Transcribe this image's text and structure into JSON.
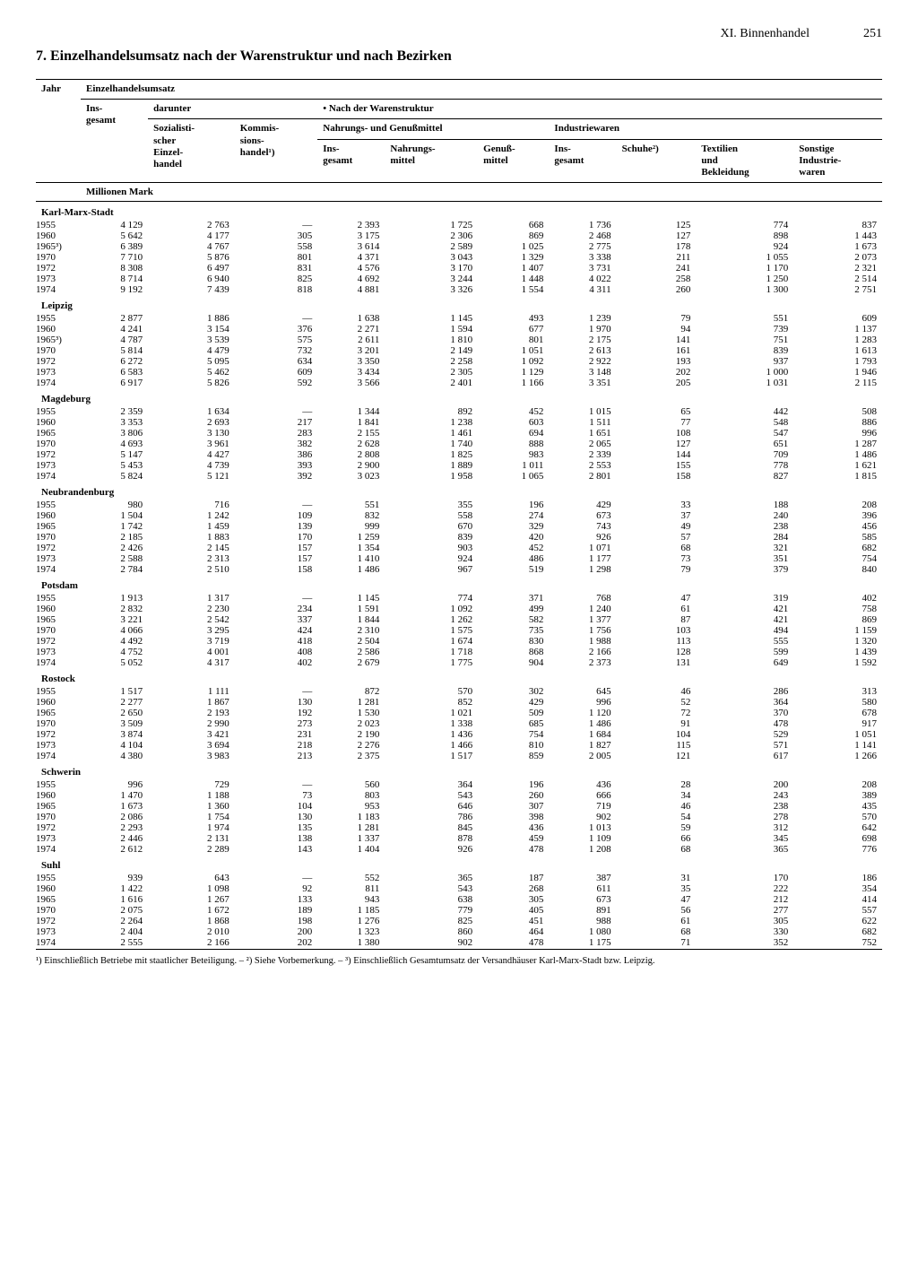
{
  "header": {
    "chapter": "XI. Binnenhandel",
    "page": "251"
  },
  "title": "7. Einzelhandelsumsatz nach der Warenstruktur und nach Bezirken",
  "columns": {
    "jahr": "Jahr",
    "einzelhandelsumsatz": "Einzelhandelsumsatz",
    "insgesamt": "Ins-\ngesamt",
    "darunter": "darunter",
    "sozEinzel": "Sozialisti-\nscher\nEinzel-\nhandel",
    "kommis": "Kommis-\nsions-\nhandel¹)",
    "nachWaren": "Nach der Warenstruktur",
    "nahrGenuss": "Nahrungs- und Genußmittel",
    "nahrIns": "Ins-\ngesamt",
    "nahrMittel": "Nahrungs-\nmittel",
    "genussMittel": "Genuß-\nmittel",
    "industriewaren": "Industriewaren",
    "indIns": "Ins-\ngesamt",
    "schuhe": "Schuhe²)",
    "textilien": "Textilien\nund\nBekleidung",
    "sonstige": "Sonstige\nIndustrie-\nwaren"
  },
  "unit": "Millionen Mark",
  "districts": [
    {
      "name": "Karl-Marx-Stadt",
      "rows": [
        [
          "1955",
          "4 129",
          "2 763",
          "—",
          "2 393",
          "1 725",
          "668",
          "1 736",
          "125",
          "774",
          "837"
        ],
        [
          "1960",
          "5 642",
          "4 177",
          "305",
          "3 175",
          "2 306",
          "869",
          "2 468",
          "127",
          "898",
          "1 443"
        ],
        [
          "1965³)",
          "6 389",
          "4 767",
          "558",
          "3 614",
          "2 589",
          "1 025",
          "2 775",
          "178",
          "924",
          "1 673"
        ],
        [
          "1970",
          "7 710",
          "5 876",
          "801",
          "4 371",
          "3 043",
          "1 329",
          "3 338",
          "211",
          "1 055",
          "2 073"
        ],
        [
          "1972",
          "8 308",
          "6 497",
          "831",
          "4 576",
          "3 170",
          "1 407",
          "3 731",
          "241",
          "1 170",
          "2 321"
        ],
        [
          "1973",
          "8 714",
          "6 940",
          "825",
          "4 692",
          "3 244",
          "1 448",
          "4 022",
          "258",
          "1 250",
          "2 514"
        ],
        [
          "1974",
          "9 192",
          "7 439",
          "818",
          "4 881",
          "3 326",
          "1 554",
          "4 311",
          "260",
          "1 300",
          "2 751"
        ]
      ]
    },
    {
      "name": "Leipzig",
      "rows": [
        [
          "1955",
          "2 877",
          "1 886",
          "—",
          "1 638",
          "1 145",
          "493",
          "1 239",
          "79",
          "551",
          "609"
        ],
        [
          "1960",
          "4 241",
          "3 154",
          "376",
          "2 271",
          "1 594",
          "677",
          "1 970",
          "94",
          "739",
          "1 137"
        ],
        [
          "1965³)",
          "4 787",
          "3 539",
          "575",
          "2 611",
          "1 810",
          "801",
          "2 175",
          "141",
          "751",
          "1 283"
        ],
        [
          "1970",
          "5 814",
          "4 479",
          "732",
          "3 201",
          "2 149",
          "1 051",
          "2 613",
          "161",
          "839",
          "1 613"
        ],
        [
          "1972",
          "6 272",
          "5 095",
          "634",
          "3 350",
          "2 258",
          "1 092",
          "2 922",
          "193",
          "937",
          "1 793"
        ],
        [
          "1973",
          "6 583",
          "5 462",
          "609",
          "3 434",
          "2 305",
          "1 129",
          "3 148",
          "202",
          "1 000",
          "1 946"
        ],
        [
          "1974",
          "6 917",
          "5 826",
          "592",
          "3 566",
          "2 401",
          "1 166",
          "3 351",
          "205",
          "1 031",
          "2 115"
        ]
      ]
    },
    {
      "name": "Magdeburg",
      "rows": [
        [
          "1955",
          "2 359",
          "1 634",
          "—",
          "1 344",
          "892",
          "452",
          "1 015",
          "65",
          "442",
          "508"
        ],
        [
          "1960",
          "3 353",
          "2 693",
          "217",
          "1 841",
          "1 238",
          "603",
          "1 511",
          "77",
          "548",
          "886"
        ],
        [
          "1965",
          "3 806",
          "3 130",
          "283",
          "2 155",
          "1 461",
          "694",
          "1 651",
          "108",
          "547",
          "996"
        ],
        [
          "1970",
          "4 693",
          "3 961",
          "382",
          "2 628",
          "1 740",
          "888",
          "2 065",
          "127",
          "651",
          "1 287"
        ],
        [
          "1972",
          "5 147",
          "4 427",
          "386",
          "2 808",
          "1 825",
          "983",
          "2 339",
          "144",
          "709",
          "1 486"
        ],
        [
          "1973",
          "5 453",
          "4 739",
          "393",
          "2 900",
          "1 889",
          "1 011",
          "2 553",
          "155",
          "778",
          "1 621"
        ],
        [
          "1974",
          "5 824",
          "5 121",
          "392",
          "3 023",
          "1 958",
          "1 065",
          "2 801",
          "158",
          "827",
          "1 815"
        ]
      ]
    },
    {
      "name": "Neubrandenburg",
      "rows": [
        [
          "1955",
          "980",
          "716",
          "—",
          "551",
          "355",
          "196",
          "429",
          "33",
          "188",
          "208"
        ],
        [
          "1960",
          "1 504",
          "1 242",
          "109",
          "832",
          "558",
          "274",
          "673",
          "37",
          "240",
          "396"
        ],
        [
          "1965",
          "1 742",
          "1 459",
          "139",
          "999",
          "670",
          "329",
          "743",
          "49",
          "238",
          "456"
        ],
        [
          "1970",
          "2 185",
          "1 883",
          "170",
          "1 259",
          "839",
          "420",
          "926",
          "57",
          "284",
          "585"
        ],
        [
          "1972",
          "2 426",
          "2 145",
          "157",
          "1 354",
          "903",
          "452",
          "1 071",
          "68",
          "321",
          "682"
        ],
        [
          "1973",
          "2 588",
          "2 313",
          "157",
          "1 410",
          "924",
          "486",
          "1 177",
          "73",
          "351",
          "754"
        ],
        [
          "1974",
          "2 784",
          "2 510",
          "158",
          "1 486",
          "967",
          "519",
          "1 298",
          "79",
          "379",
          "840"
        ]
      ]
    },
    {
      "name": "Potsdam",
      "rows": [
        [
          "1955",
          "1 913",
          "1 317",
          "—",
          "1 145",
          "774",
          "371",
          "768",
          "47",
          "319",
          "402"
        ],
        [
          "1960",
          "2 832",
          "2 230",
          "234",
          "1 591",
          "1 092",
          "499",
          "1 240",
          "61",
          "421",
          "758"
        ],
        [
          "1965",
          "3 221",
          "2 542",
          "337",
          "1 844",
          "1 262",
          "582",
          "1 377",
          "87",
          "421",
          "869"
        ],
        [
          "1970",
          "4 066",
          "3 295",
          "424",
          "2 310",
          "1 575",
          "735",
          "1 756",
          "103",
          "494",
          "1 159"
        ],
        [
          "1972",
          "4 492",
          "3 719",
          "418",
          "2 504",
          "1 674",
          "830",
          "1 988",
          "113",
          "555",
          "1 320"
        ],
        [
          "1973",
          "4 752",
          "4 001",
          "408",
          "2 586",
          "1 718",
          "868",
          "2 166",
          "128",
          "599",
          "1 439"
        ],
        [
          "1974",
          "5 052",
          "4 317",
          "402",
          "2 679",
          "1 775",
          "904",
          "2 373",
          "131",
          "649",
          "1 592"
        ]
      ]
    },
    {
      "name": "Rostock",
      "rows": [
        [
          "1955",
          "1 517",
          "1 111",
          "—",
          "872",
          "570",
          "302",
          "645",
          "46",
          "286",
          "313"
        ],
        [
          "1960",
          "2 277",
          "1 867",
          "130",
          "1 281",
          "852",
          "429",
          "996",
          "52",
          "364",
          "580"
        ],
        [
          "1965",
          "2 650",
          "2 193",
          "192",
          "1 530",
          "1 021",
          "509",
          "1 120",
          "72",
          "370",
          "678"
        ],
        [
          "1970",
          "3 509",
          "2 990",
          "273",
          "2 023",
          "1 338",
          "685",
          "1 486",
          "91",
          "478",
          "917"
        ],
        [
          "1972",
          "3 874",
          "3 421",
          "231",
          "2 190",
          "1 436",
          "754",
          "1 684",
          "104",
          "529",
          "1 051"
        ],
        [
          "1973",
          "4 104",
          "3 694",
          "218",
          "2 276",
          "1 466",
          "810",
          "1 827",
          "115",
          "571",
          "1 141"
        ],
        [
          "1974",
          "4 380",
          "3 983",
          "213",
          "2 375",
          "1 517",
          "859",
          "2 005",
          "121",
          "617",
          "1 266"
        ]
      ]
    },
    {
      "name": "Schwerin",
      "rows": [
        [
          "1955",
          "996",
          "729",
          "—",
          "560",
          "364",
          "196",
          "436",
          "28",
          "200",
          "208"
        ],
        [
          "1960",
          "1 470",
          "1 188",
          "73",
          "803",
          "543",
          "260",
          "666",
          "34",
          "243",
          "389"
        ],
        [
          "1965",
          "1 673",
          "1 360",
          "104",
          "953",
          "646",
          "307",
          "719",
          "46",
          "238",
          "435"
        ],
        [
          "1970",
          "2 086",
          "1 754",
          "130",
          "1 183",
          "786",
          "398",
          "902",
          "54",
          "278",
          "570"
        ],
        [
          "1972",
          "2 293",
          "1 974",
          "135",
          "1 281",
          "845",
          "436",
          "1 013",
          "59",
          "312",
          "642"
        ],
        [
          "1973",
          "2 446",
          "2 131",
          "138",
          "1 337",
          "878",
          "459",
          "1 109",
          "66",
          "345",
          "698"
        ],
        [
          "1974",
          "2 612",
          "2 289",
          "143",
          "1 404",
          "926",
          "478",
          "1 208",
          "68",
          "365",
          "776"
        ]
      ]
    },
    {
      "name": "Suhl",
      "rows": [
        [
          "1955",
          "939",
          "643",
          "—",
          "552",
          "365",
          "187",
          "387",
          "31",
          "170",
          "186"
        ],
        [
          "1960",
          "1 422",
          "1 098",
          "92",
          "811",
          "543",
          "268",
          "611",
          "35",
          "222",
          "354"
        ],
        [
          "1965",
          "1 616",
          "1 267",
          "133",
          "943",
          "638",
          "305",
          "673",
          "47",
          "212",
          "414"
        ],
        [
          "1970",
          "2 075",
          "1 672",
          "189",
          "1 185",
          "779",
          "405",
          "891",
          "56",
          "277",
          "557"
        ],
        [
          "1972",
          "2 264",
          "1 868",
          "198",
          "1 276",
          "825",
          "451",
          "988",
          "61",
          "305",
          "622"
        ],
        [
          "1973",
          "2 404",
          "2 010",
          "200",
          "1 323",
          "860",
          "464",
          "1 080",
          "68",
          "330",
          "682"
        ],
        [
          "1974",
          "2 555",
          "2 166",
          "202",
          "1 380",
          "902",
          "478",
          "1 175",
          "71",
          "352",
          "752"
        ]
      ]
    }
  ],
  "footnote": "¹) Einschließlich Betriebe mit staatlicher Beteiligung. – ²) Siehe Vorbemerkung. – ³) Einschließlich Gesamtumsatz der Versandhäuser Karl-Marx-Stadt bzw. Leipzig."
}
